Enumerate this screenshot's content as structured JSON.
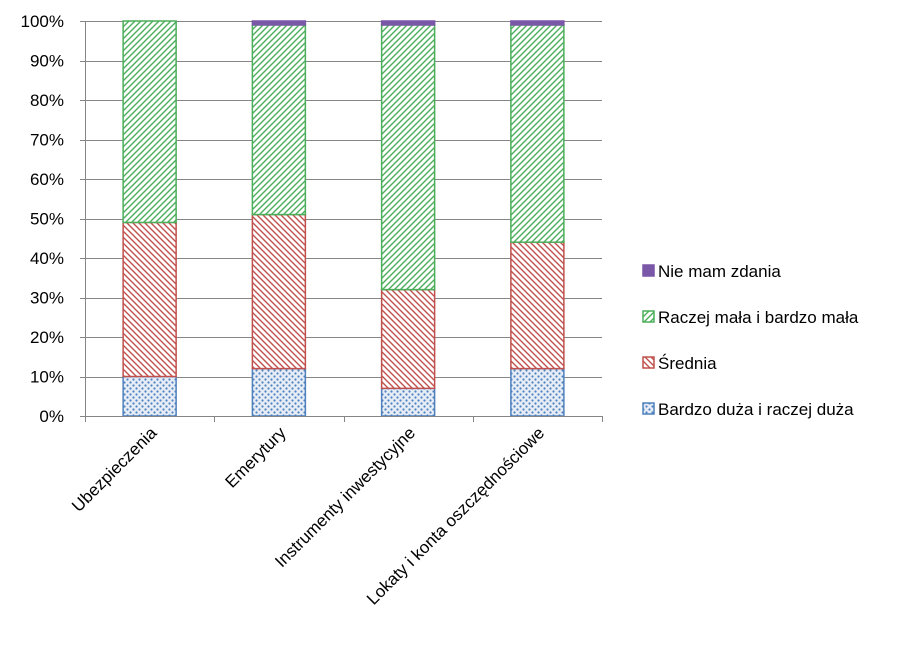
{
  "chart_data": {
    "type": "bar",
    "stacked": true,
    "percent_stacked": true,
    "title": "",
    "xlabel": "",
    "ylabel": "",
    "categories": [
      "Ubezpieczenia",
      "Emerytury",
      "Instrumenty inwestycyjne",
      "Lokaty i konta oszczędnościowe"
    ],
    "series": [
      {
        "name": "Bardzo duża i raczej duża",
        "values": [
          10,
          12,
          7,
          12
        ],
        "color": "#4f81bd",
        "pattern": "dots"
      },
      {
        "name": "Średnia",
        "values": [
          39,
          39,
          25,
          32
        ],
        "color": "#c0504d",
        "pattern": "diagonal-down"
      },
      {
        "name": "Raczej mała i bardzo mała",
        "values": [
          51,
          48,
          67,
          55
        ],
        "color": "#4bae5a",
        "pattern": "diagonal-up"
      },
      {
        "name": "Nie mam zdania",
        "values": [
          0,
          1,
          1,
          1
        ],
        "color": "#7b57a8",
        "pattern": "solid"
      }
    ],
    "ylim": [
      0,
      100
    ],
    "yticks": [
      "0%",
      "10%",
      "20%",
      "30%",
      "40%",
      "50%",
      "60%",
      "70%",
      "80%",
      "90%",
      "100%"
    ],
    "grid": true,
    "legend_position": "right"
  }
}
